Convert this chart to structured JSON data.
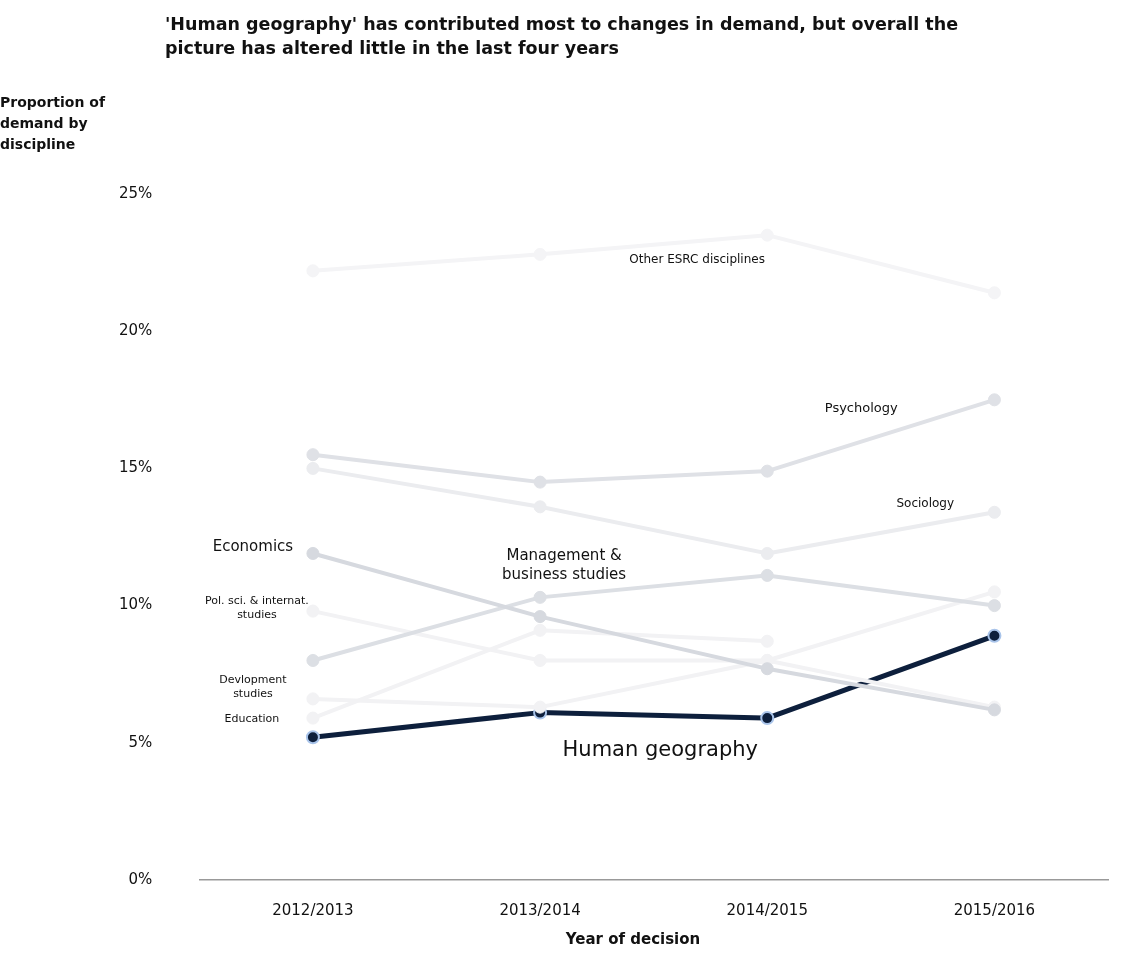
{
  "chart_data": {
    "type": "line",
    "title": "'Human geography' has contributed most to changes in demand, but overall the picture has altered little in the last four years",
    "xlabel": "Year of decision",
    "ylabel": "Proportion of demand by discipline",
    "categories": [
      "2012/2013",
      "2013/2014",
      "2014/2015",
      "2015/2016"
    ],
    "ylim": [
      0,
      25
    ],
    "yticks": [
      {
        "value": 0,
        "label": "0%"
      },
      {
        "value": 5,
        "label": "5%"
      },
      {
        "value": 10,
        "label": "10%"
      },
      {
        "value": 15,
        "label": "15%"
      },
      {
        "value": 20,
        "label": "20%"
      },
      {
        "value": 25,
        "label": "25%"
      }
    ],
    "marker": "circle",
    "line_style": "solid",
    "series": [
      {
        "name": "Other ESRC disciplines",
        "color": "#f4f4f6",
        "values": [
          22.2,
          22.8,
          23.5,
          21.4
        ]
      },
      {
        "name": "Psychology",
        "color": "#dfe1e6",
        "values": [
          15.5,
          14.5,
          14.9,
          17.5
        ]
      },
      {
        "name": "Sociology",
        "color": "#ebecef",
        "values": [
          15.0,
          13.6,
          11.9,
          13.4
        ]
      },
      {
        "name": "Economics",
        "color": "#d6d9df",
        "values": [
          11.9,
          9.6,
          7.7,
          6.2
        ]
      },
      {
        "name": "Management & business studies",
        "color": "#dcdfe4",
        "values": [
          8.0,
          10.3,
          11.1,
          10.0
        ]
      },
      {
        "name": "Pol. sci. & internat. studies",
        "color": "#f2f2f4",
        "values": [
          9.8,
          8.0,
          8.0,
          6.3
        ]
      },
      {
        "name": "Devlopment studies",
        "color": "#f2f2f4",
        "values": [
          6.6,
          6.3,
          8.0,
          10.5
        ]
      },
      {
        "name": "Education",
        "color": "#f2f2f4",
        "values": [
          5.9,
          9.1,
          8.7,
          null
        ]
      },
      {
        "name": "Human geography",
        "color": "#0d1f3c",
        "values": [
          5.2,
          6.1,
          5.9,
          8.9
        ]
      }
    ]
  }
}
